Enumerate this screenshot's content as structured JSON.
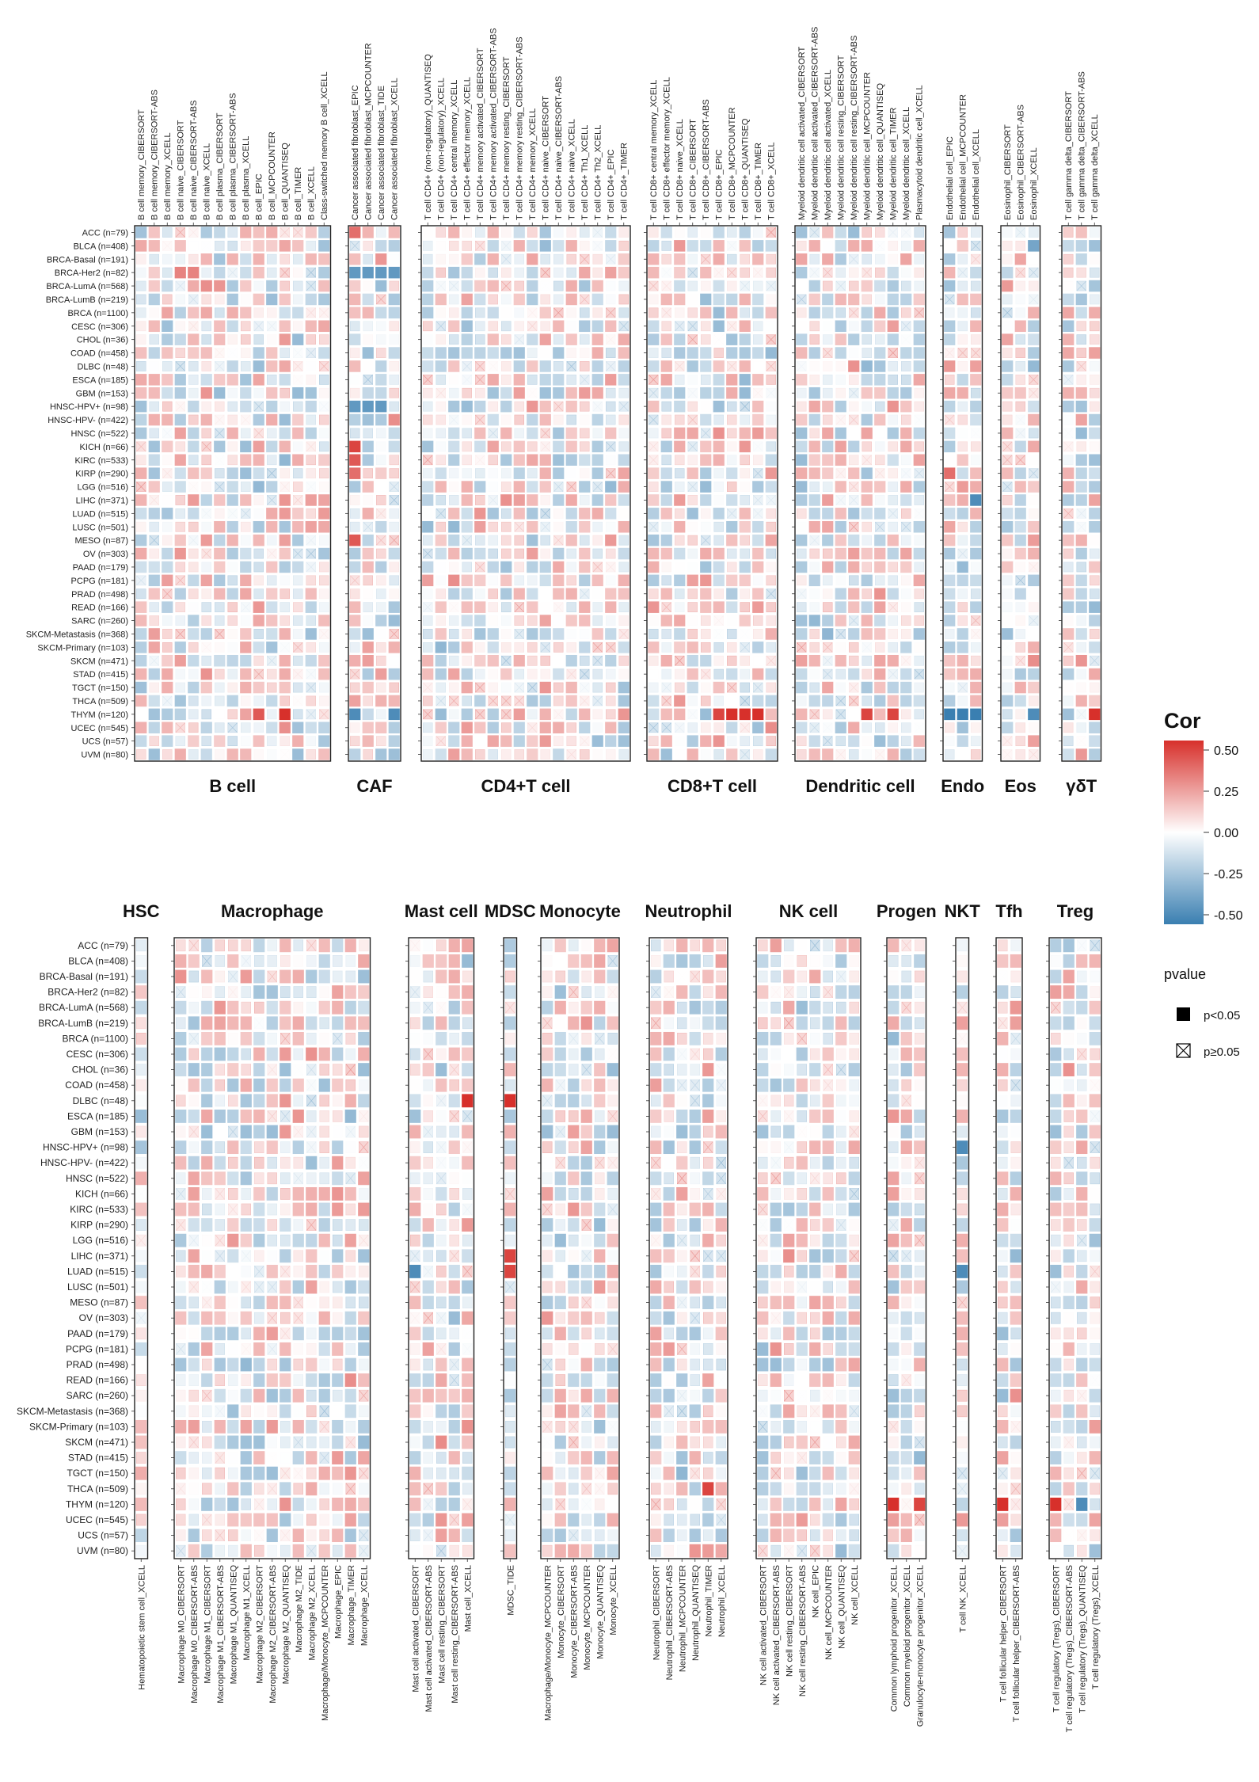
{
  "cancers": [
    "ACC (n=79)",
    "BLCA (n=408)",
    "BRCA-Basal (n=191)",
    "BRCA-Her2 (n=82)",
    "BRCA-LumA (n=568)",
    "BRCA-LumB (n=219)",
    "BRCA (n=1100)",
    "CESC (n=306)",
    "CHOL (n=36)",
    "COAD (n=458)",
    "DLBC (n=48)",
    "ESCA (n=185)",
    "GBM (n=153)",
    "HNSC-HPV+ (n=98)",
    "HNSC-HPV- (n=422)",
    "HNSC (n=522)",
    "KICH (n=66)",
    "KIRC (n=533)",
    "KIRP (n=290)",
    "LGG (n=516)",
    "LIHC (n=371)",
    "LUAD (n=515)",
    "LUSC (n=501)",
    "MESO (n=87)",
    "OV (n=303)",
    "PAAD (n=179)",
    "PCPG (n=181)",
    "PRAD (n=498)",
    "READ (n=166)",
    "SARC (n=260)",
    "SKCM-Metastasis (n=368)",
    "SKCM-Primary (n=103)",
    "SKCM (n=471)",
    "STAD (n=415)",
    "TGCT (n=150)",
    "THCA (n=509)",
    "THYM (n=120)",
    "UCEC (n=545)",
    "UCS (n=57)",
    "UVM (n=80)"
  ],
  "legend": {
    "cor_title": "Cor",
    "cor_ticks": [
      "0.50",
      "0.25",
      "0.00",
      "-0.25",
      "-0.50"
    ],
    "pvalue_title": "pvalue",
    "sig_label": "p<0.05",
    "nonsig_label": "p≥0.05",
    "colors": {
      "high": "#d7302b",
      "mid": "#ffffff",
      "low": "#3a7fb1"
    }
  },
  "chart_data": {
    "type": "heatmap",
    "value_range": [
      -0.5,
      0.5
    ],
    "top_panels": [
      {
        "name": "B cell",
        "columns": [
          "B cell memory_CIBERSORT",
          "B cell memory_CIBERSORT-ABS",
          "B cell memory_XCELL",
          "B cell naive_CIBERSORT",
          "B cell naive_CIBERSORT-ABS",
          "B cell naive_XCELL",
          "B cell plasma_CIBERSORT",
          "B cell plasma_CIBERSORT-ABS",
          "B cell plasma_XCELL",
          "B cell_EPIC",
          "B cell_MCPCOUNTER",
          "B cell_QUANTISEQ",
          "B cell_TIMER",
          "B cell_XCELL",
          "Class-switched memory B cell_XCELL"
        ]
      },
      {
        "name": "CAF",
        "columns": [
          "Cancer associated fibroblast_EPIC",
          "Cancer associated fibroblast_MCPCOUNTER",
          "Cancer associated fibroblast_TIDE",
          "Cancer associated fibroblast_XCELL"
        ]
      },
      {
        "name": "CD4+T cell",
        "columns": [
          "T cell CD4+ (non-regulatory)_QUANTISEQ",
          "T cell CD4+ (non-regulatory)_XCELL",
          "T cell CD4+ central memory_XCELL",
          "T cell CD4+ effector memory_XCELL",
          "T cell CD4+ memory activated_CIBERSORT",
          "T cell CD4+ memory activated_CIBERSORT-ABS",
          "T cell CD4+ memory resting_CIBERSORT",
          "T cell CD4+ memory resting_CIBERSORT-ABS",
          "T cell CD4+ memory_XCELL",
          "T cell CD4+ naive_CIBERSORT",
          "T cell CD4+ naive_CIBERSORT-ABS",
          "T cell CD4+ naive_XCELL",
          "T cell CD4+ Th1_XCELL",
          "T cell CD4+ Th2_XCELL",
          "T cell CD4+_EPIC",
          "T cell CD4+_TIMER"
        ]
      },
      {
        "name": "CD8+T cell",
        "columns": [
          "T cell CD8+ central memory_XCELL",
          "T cell CD8+ effector memory_XCELL",
          "T cell CD8+ naive_XCELL",
          "T cell CD8+_CIBERSORT",
          "T cell CD8+_CIBERSORT-ABS",
          "T cell CD8+_EPIC",
          "T cell CD8+_MCPCOUNTER",
          "T cell CD8+_QUANTISEQ",
          "T cell CD8+_TIMER",
          "T cell CD8+_XCELL"
        ]
      },
      {
        "name": "Dendritic cell",
        "columns": [
          "Myeloid dendritic cell activated_CIBERSORT",
          "Myeloid dendritic cell activated_CIBERSORT-ABS",
          "Myeloid dendritic cell activated_XCELL",
          "Myeloid dendritic cell resting_CIBERSORT",
          "Myeloid dendritic cell resting_CIBERSORT-ABS",
          "Myeloid dendritic cell_MCPCOUNTER",
          "Myeloid dendritic cell_QUANTISEQ",
          "Myeloid dendritic cell_TIMER",
          "Myeloid dendritic cell_XCELL",
          "Plasmacytoid dendritic cell_XCELL"
        ]
      },
      {
        "name": "Endo",
        "columns": [
          "Endothelial cell_EPIC",
          "Endothelial cell_MCPCOUNTER",
          "Endothelial cell_XCELL"
        ]
      },
      {
        "name": "Eos",
        "columns": [
          "Eosinophil_CIBERSORT",
          "Eosinophil_CIBERSORT-ABS",
          "Eosinophil_XCELL"
        ]
      },
      {
        "name": "γδT",
        "columns": [
          "T cell gamma delta_CIBERSORT",
          "T cell gamma delta_CIBERSORT-ABS",
          "T cell gamma delta_XCELL"
        ]
      }
    ],
    "bottom_panels": [
      {
        "name": "HSC",
        "columns": [
          "Hematopoietic stem cell_XCELL"
        ]
      },
      {
        "name": "Macrophage",
        "columns": [
          "Macrophage M0_CIBERSORT",
          "Macrophage M0_CIBERSORT-ABS",
          "Macrophage M1_CIBERSORT",
          "Macrophage M1_CIBERSORT-ABS",
          "Macrophage M1_QUANTISEQ",
          "Macrophage M1_XCELL",
          "Macrophage M2_CIBERSORT",
          "Macrophage M2_CIBERSORT-ABS",
          "Macrophage M2_QUANTISEQ",
          "Macrophage M2_TIDE",
          "Macrophage M2_XCELL",
          "Macrophage/Monocyte_MCPCOUNTER",
          "Macrophage_EPIC",
          "Macrophage_TIMER",
          "Macrophage_XCELL"
        ]
      },
      {
        "name": "Mast cell",
        "columns": [
          "Mast cell activated_CIBERSORT",
          "Mast cell activated_CIBERSORT-ABS",
          "Mast cell resting_CIBERSORT",
          "Mast cell resting_CIBERSORT-ABS",
          "Mast cell_XCELL"
        ]
      },
      {
        "name": "MDSC",
        "columns": [
          "MDSC_TIDE"
        ]
      },
      {
        "name": "Monocyte",
        "columns": [
          "Macrophage/Monocyte_MCPCOUNTER",
          "Monocyte_CIBERSORT",
          "Monocyte_CIBERSORT-ABS",
          "Monocyte_MCPCOUNTER",
          "Monocyte_QUANTISEQ",
          "Monocyte_XCELL"
        ]
      },
      {
        "name": "Neutrophil",
        "columns": [
          "Neutrophil_CIBERSORT",
          "Neutrophil_CIBERSORT-ABS",
          "Neutrophil_MCPCOUNTER",
          "Neutrophil_QUANTISEQ",
          "Neutrophil_TIMER",
          "Neutrophil_XCELL"
        ]
      },
      {
        "name": "NK cell",
        "columns": [
          "NK cell activated_CIBERSORT",
          "NK cell activated_CIBERSORT-ABS",
          "NK cell resting_CIBERSORT",
          "NK cell resting_CIBERSORT-ABS",
          "NK cell_EPIC",
          "NK cell_MCPCOUNTER",
          "NK cell_QUANTISEQ",
          "NK cell_XCELL"
        ]
      },
      {
        "name": "Progen",
        "columns": [
          "Common lymphoid progenitor_XCELL",
          "Common myeloid progenitor_XCELL",
          "Granulocyte-monocyte progenitor_XCELL"
        ]
      },
      {
        "name": "NKT",
        "columns": [
          "T cell NK_XCELL"
        ]
      },
      {
        "name": "Tfh",
        "columns": [
          "T cell follicular helper_CIBERSORT",
          "T cell follicular helper_CIBERSORT-ABS"
        ]
      },
      {
        "name": "Treg",
        "columns": [
          "T cell regulatory (Tregs)_CIBERSORT",
          "T cell regulatory (Tregs)_CIBERSORT-ABS",
          "T cell regulatory (Tregs)_QUANTISEQ",
          "T cell regulatory (Tregs)_XCELL"
        ]
      }
    ],
    "highlights": [
      {
        "panel": "CAF",
        "col": 0,
        "row": 0,
        "value": 0.35
      },
      {
        "panel": "CAF",
        "col": 0,
        "row": 3,
        "value": -0.4
      },
      {
        "panel": "CAF",
        "col": 1,
        "row": 3,
        "value": -0.4
      },
      {
        "panel": "CAF",
        "col": 2,
        "row": 3,
        "value": -0.4
      },
      {
        "panel": "CAF",
        "col": 3,
        "row": 3,
        "value": -0.4
      },
      {
        "panel": "CAF",
        "col": 0,
        "row": 13,
        "value": -0.4
      },
      {
        "panel": "CAF",
        "col": 1,
        "row": 13,
        "value": -0.4
      },
      {
        "panel": "CAF",
        "col": 2,
        "row": 13,
        "value": -0.4
      },
      {
        "panel": "CAF",
        "col": 0,
        "row": 16,
        "value": 0.45
      },
      {
        "panel": "CAF",
        "col": 0,
        "row": 17,
        "value": 0.4
      },
      {
        "panel": "CAF",
        "col": 0,
        "row": 18,
        "value": 0.35
      },
      {
        "panel": "CAF",
        "col": 0,
        "row": 23,
        "value": 0.4
      },
      {
        "panel": "CAF",
        "col": 0,
        "row": 36,
        "value": -0.45
      },
      {
        "panel": "CAF",
        "col": 3,
        "row": 36,
        "value": -0.45
      },
      {
        "panel": "B cell",
        "col": 11,
        "row": 36,
        "value": 0.5
      },
      {
        "panel": "B cell",
        "col": 9,
        "row": 36,
        "value": 0.4
      },
      {
        "panel": "B cell",
        "col": 3,
        "row": 3,
        "value": 0.3
      },
      {
        "panel": "B cell",
        "col": 4,
        "row": 3,
        "value": 0.3
      },
      {
        "panel": "CD8+T cell",
        "col": 6,
        "row": 36,
        "value": 0.5
      },
      {
        "panel": "CD8+T cell",
        "col": 7,
        "row": 36,
        "value": 0.5
      },
      {
        "panel": "CD8+T cell",
        "col": 8,
        "row": 36,
        "value": 0.5
      },
      {
        "panel": "CD8+T cell",
        "col": 5,
        "row": 36,
        "value": 0.45
      },
      {
        "panel": "Dendritic cell",
        "col": 5,
        "row": 36,
        "value": 0.45
      },
      {
        "panel": "Dendritic cell",
        "col": 7,
        "row": 36,
        "value": 0.45
      },
      {
        "panel": "Endo",
        "col": 0,
        "row": 36,
        "value": -0.5
      },
      {
        "panel": "Endo",
        "col": 1,
        "row": 36,
        "value": -0.5
      },
      {
        "panel": "Endo",
        "col": 2,
        "row": 36,
        "value": -0.5
      },
      {
        "panel": "Endo",
        "col": 2,
        "row": 20,
        "value": -0.45
      },
      {
        "panel": "Endo",
        "col": 0,
        "row": 18,
        "value": 0.35
      },
      {
        "panel": "Eos",
        "col": 2,
        "row": 36,
        "value": -0.45
      },
      {
        "panel": "Eos",
        "col": 2,
        "row": 1,
        "value": -0.35
      },
      {
        "panel": "γδT",
        "col": 2,
        "row": 36,
        "value": 0.5
      },
      {
        "panel": "MDSC",
        "col": 0,
        "row": 10,
        "value": 0.5
      },
      {
        "panel": "MDSC",
        "col": 0,
        "row": 20,
        "value": 0.45
      },
      {
        "panel": "MDSC",
        "col": 0,
        "row": 21,
        "value": 0.45
      },
      {
        "panel": "Mast cell",
        "col": 0,
        "row": 21,
        "value": -0.45
      },
      {
        "panel": "Mast cell",
        "col": 4,
        "row": 10,
        "value": 0.5
      },
      {
        "panel": "Neutrophil",
        "col": 4,
        "row": 35,
        "value": 0.45
      },
      {
        "panel": "Progen",
        "col": 0,
        "row": 36,
        "value": 0.5
      },
      {
        "panel": "Progen",
        "col": 2,
        "row": 36,
        "value": 0.45
      },
      {
        "panel": "Tfh",
        "col": 0,
        "row": 36,
        "value": 0.5
      },
      {
        "panel": "Treg",
        "col": 0,
        "row": 36,
        "value": 0.5
      },
      {
        "panel": "Treg",
        "col": 2,
        "row": 36,
        "value": -0.45
      },
      {
        "panel": "NKT",
        "col": 0,
        "row": 21,
        "value": -0.45
      },
      {
        "panel": "NKT",
        "col": 0,
        "row": 13,
        "value": -0.45
      }
    ]
  }
}
